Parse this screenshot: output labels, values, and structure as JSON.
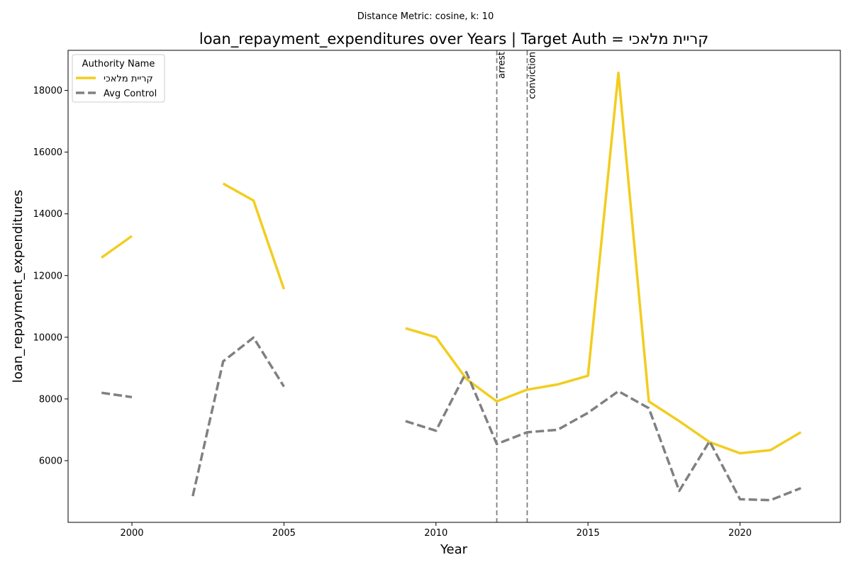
{
  "chart_data": {
    "type": "line",
    "subtitle": "Distance Metric: cosine, k: 10",
    "title": "loan_repayment_expenditures over Years | Target Auth = קריית מלאכי",
    "xlabel": "Year",
    "ylabel": "loan_repayment_expenditures",
    "xlim": [
      1997.9,
      2023.3
    ],
    "ylim": [
      4000,
      19300
    ],
    "xticks": [
      2000,
      2005,
      2010,
      2015,
      2020
    ],
    "yticks": [
      6000,
      8000,
      10000,
      12000,
      14000,
      16000,
      18000
    ],
    "grid": false,
    "legend": {
      "title": "Authority Name",
      "placement": "top-left"
    },
    "series": [
      {
        "name": "קריית מלאכי",
        "color": "#f2cd1f",
        "style": "solid",
        "x": [
          1999,
          2000,
          2001,
          2002,
          2003,
          2004,
          2005,
          2006,
          2007,
          2008,
          2009,
          2010,
          2011,
          2012,
          2013,
          2014,
          2015,
          2016,
          2017,
          2018,
          2019,
          2020,
          2021,
          2022
        ],
        "y": [
          12580,
          13280,
          null,
          null,
          14980,
          14430,
          11560,
          null,
          null,
          null,
          10290,
          10000,
          8650,
          7920,
          8300,
          8470,
          8750,
          18570,
          7920,
          7280,
          6600,
          6240,
          6340,
          6920
        ]
      },
      {
        "name": "Avg Control",
        "color": "#808080",
        "style": "dashed",
        "x": [
          1999,
          2000,
          2001,
          2002,
          2003,
          2004,
          2005,
          2006,
          2007,
          2008,
          2009,
          2010,
          2011,
          2012,
          2013,
          2014,
          2015,
          2016,
          2017,
          2018,
          2019,
          2020,
          2021,
          2022
        ],
        "y": [
          8200,
          8060,
          null,
          4850,
          9220,
          9990,
          8400,
          null,
          null,
          null,
          7280,
          6970,
          8870,
          6540,
          6920,
          7000,
          7550,
          8250,
          7700,
          5020,
          6630,
          4750,
          4720,
          5110
        ]
      }
    ],
    "annotations": [
      {
        "label": "arrest",
        "x": 2012
      },
      {
        "label": "conviction",
        "x": 2013
      }
    ]
  },
  "colors": {
    "target": "#f2cd1f",
    "control": "#808080",
    "event_line": "#808080"
  }
}
